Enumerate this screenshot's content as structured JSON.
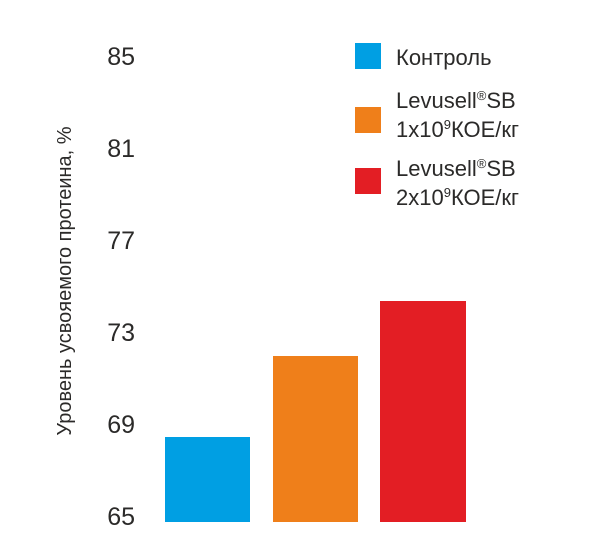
{
  "chart_data": {
    "type": "bar",
    "title": "",
    "xlabel": "",
    "ylabel": "Уровень усвояемого протеина, %",
    "categories": [
      "Контроль",
      "Levusell®SB 1x10⁹ КОЕ/кг",
      "Levusell®SB 2x10⁹ КОЕ/кг"
    ],
    "values": [
      68.5,
      72,
      74.4
    ],
    "bar_colors": [
      "#009FE3",
      "#EF7F1A",
      "#E31E24"
    ],
    "yticks": [
      85,
      81,
      77,
      73,
      69,
      65
    ],
    "ylim": [
      65,
      86.5
    ],
    "grid": false,
    "axis_lines": false,
    "legend_position": "top-right"
  },
  "legend": {
    "items": [
      {
        "swatch_color": "#009FE3",
        "label": "Контроль"
      },
      {
        "swatch_color": "#EF7F1A",
        "line1": {
          "pre": "Levusell",
          "sup": "®",
          "post": "SB"
        },
        "line2": {
          "pre": "1x10",
          "sup": "9",
          "post": "КОЕ/кг"
        }
      },
      {
        "swatch_color": "#E31E24",
        "line1": {
          "pre": "Levusell",
          "sup": "®",
          "post": "SB"
        },
        "line2": {
          "pre": "2x10",
          "sup": "9",
          "post": "КОЕ/кг"
        }
      }
    ]
  },
  "colors": {
    "text": "#2B2A29",
    "background": "#FFFFFF"
  }
}
